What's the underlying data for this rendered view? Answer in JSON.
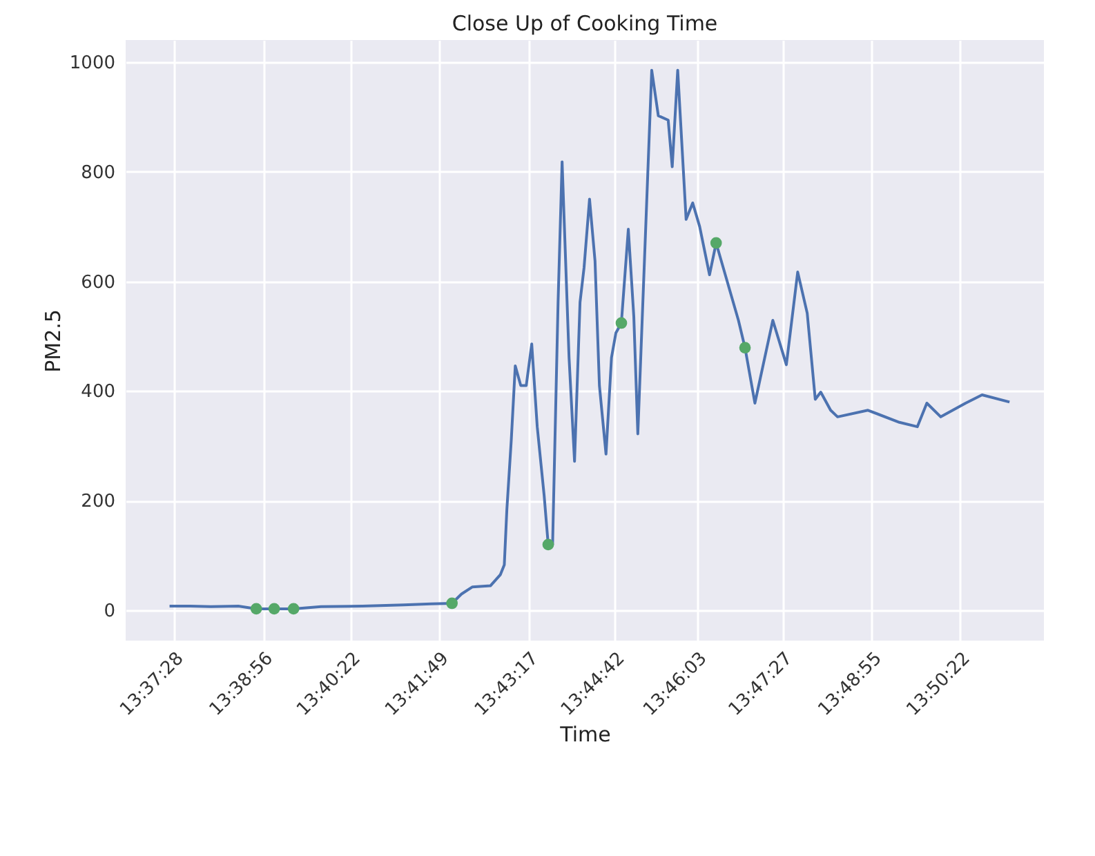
{
  "chart_data": {
    "type": "line",
    "title": "Close Up of Cooking Time",
    "xlabel": "Time",
    "ylabel": "PM2.5",
    "xlim": [
      13.6113,
      13.8623
    ],
    "ylim": [
      -55,
      1040
    ],
    "xticks": [
      {
        "value": 13.62444,
        "label": "13:37:28"
      },
      {
        "value": 13.64889,
        "label": "13:38:56"
      },
      {
        "value": 13.67278,
        "label": "13:40:22"
      },
      {
        "value": 13.69694,
        "label": "13:41:49"
      },
      {
        "value": 13.72139,
        "label": "13:43:17"
      },
      {
        "value": 13.745,
        "label": "13:44:42"
      },
      {
        "value": 13.7675,
        "label": "13:46:03"
      },
      {
        "value": 13.79083,
        "label": "13:47:27"
      },
      {
        "value": 13.81528,
        "label": "13:48:55"
      },
      {
        "value": 13.83944,
        "label": "13:50:22"
      }
    ],
    "yticks": [
      0,
      200,
      400,
      600,
      800,
      1000
    ],
    "grid": true,
    "series": [
      {
        "color": "#4c72b0",
        "x": [
          13.6233,
          13.629,
          13.6346,
          13.6421,
          13.647,
          13.6519,
          13.6572,
          13.6647,
          13.676,
          13.6873,
          13.6948,
          13.7005,
          13.7031,
          13.7061,
          13.711,
          13.7137,
          13.7148,
          13.7155,
          13.7167,
          13.7178,
          13.7193,
          13.7208,
          13.7223,
          13.7238,
          13.7257,
          13.7268,
          13.728,
          13.7295,
          13.7306,
          13.7325,
          13.734,
          13.7355,
          13.7366,
          13.7381,
          13.7396,
          13.7408,
          13.7426,
          13.7441,
          13.7453,
          13.7468,
          13.7487,
          13.7502,
          13.7513,
          13.7551,
          13.7569,
          13.7596,
          13.7607,
          13.7622,
          13.7645,
          13.7663,
          13.7682,
          13.7709,
          13.7727,
          13.7788,
          13.7806,
          13.7833,
          13.7882,
          13.7919,
          13.795,
          13.7976,
          13.7998,
          13.8013,
          13.804,
          13.8059,
          13.8142,
          13.8228,
          13.8277,
          13.8303,
          13.8341,
          13.8409,
          13.8454,
          13.8529
        ],
        "values": [
          8,
          8,
          7,
          8,
          3,
          3,
          3,
          7,
          8,
          10,
          12,
          13,
          30,
          43,
          45,
          65,
          83,
          184,
          310,
          446,
          410,
          410,
          486,
          335,
          209,
          120,
          120,
          562,
          818,
          461,
          272,
          562,
          625,
          750,
          637,
          410,
          285,
          461,
          506,
          524,
          695,
          536,
          322,
          985,
          902,
          894,
          809,
          985,
          713,
          743,
          700,
          612,
          670,
          529,
          479,
          378,
          529,
          448,
          617,
          542,
          385,
          398,
          365,
          353,
          365,
          343,
          335,
          378,
          353,
          378,
          393,
          380
        ]
      },
      {
        "type": "scatter",
        "color": "#55a868",
        "marker": "circle",
        "x": [
          13.647,
          13.6519,
          13.6572,
          13.7005,
          13.7268,
          13.7468,
          13.7727,
          13.7806
        ],
        "values": [
          3,
          3,
          3,
          13,
          120,
          524,
          670,
          479
        ]
      }
    ]
  }
}
